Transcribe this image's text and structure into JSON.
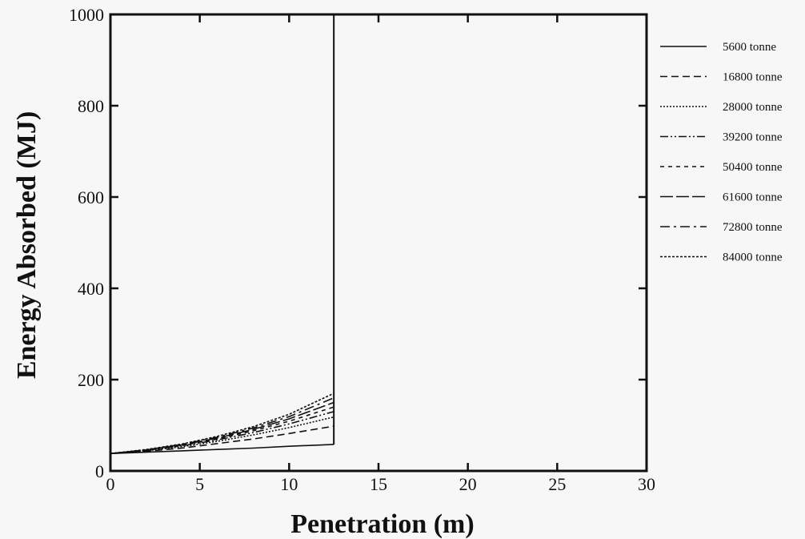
{
  "chart_data": {
    "type": "line",
    "title": "",
    "xlabel": "Penetration (m)",
    "ylabel": "Energy Absorbed (MJ)",
    "xlim": [
      0,
      30
    ],
    "ylim": [
      0,
      1000
    ],
    "x_ticks": [
      "0",
      "5",
      "10",
      "15",
      "20",
      "25",
      "30"
    ],
    "y_ticks": [
      "0",
      "200",
      "400",
      "600",
      "800",
      "1000"
    ],
    "grid": false,
    "legend_position": "right",
    "x_max_penetration": 12.5,
    "series": [
      {
        "name": "5600 tonne",
        "dash": "solid",
        "x": [
          0,
          2,
          4,
          6,
          8,
          10,
          12.5
        ],
        "y": [
          38,
          41,
          44,
          47,
          50,
          54,
          58
        ]
      },
      {
        "name": "16800 tonne",
        "dash": "dashed",
        "x": [
          0,
          2,
          4,
          6,
          8,
          10,
          12.5
        ],
        "y": [
          38,
          43,
          50,
          60,
          70,
          82,
          98
        ]
      },
      {
        "name": "28000 tonne",
        "dash": "dotted",
        "x": [
          0,
          2,
          4,
          6,
          8,
          10,
          12.5
        ],
        "y": [
          38,
          44,
          53,
          65,
          79,
          95,
          118
        ]
      },
      {
        "name": "39200 tonne",
        "dash": "dash-dot-dot",
        "x": [
          0,
          2,
          4,
          6,
          8,
          10,
          12.5
        ],
        "y": [
          38,
          45,
          55,
          68,
          84,
          103,
          130
        ]
      },
      {
        "name": "50400 tonne",
        "dash": "short-dash",
        "x": [
          0,
          2,
          4,
          6,
          8,
          10,
          12.5
        ],
        "y": [
          38,
          45,
          56,
          70,
          88,
          109,
          140
        ]
      },
      {
        "name": "61600 tonne",
        "dash": "long-dash",
        "x": [
          0,
          2,
          4,
          6,
          8,
          10,
          12.5
        ],
        "y": [
          38,
          46,
          57,
          72,
          91,
          114,
          150
        ]
      },
      {
        "name": "72800 tonne",
        "dash": "dash-dot",
        "x": [
          0,
          2,
          4,
          6,
          8,
          10,
          12.5
        ],
        "y": [
          38,
          46,
          58,
          74,
          94,
          119,
          160
        ]
      },
      {
        "name": "84000 tonne",
        "dash": "fine-dotted",
        "x": [
          0,
          2,
          4,
          6,
          8,
          10,
          12.5
        ],
        "y": [
          38,
          47,
          59,
          76,
          97,
          124,
          170
        ]
      }
    ]
  }
}
